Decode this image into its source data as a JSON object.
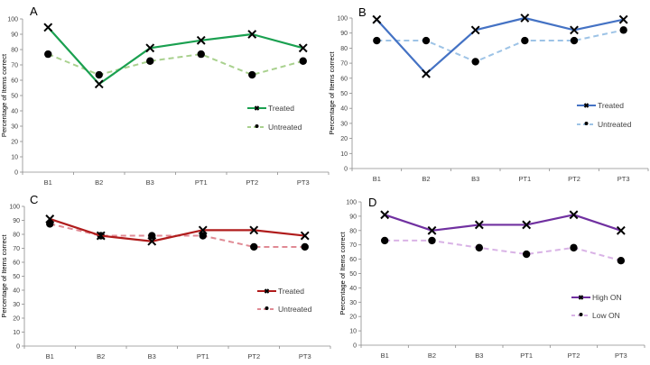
{
  "chart_data": [
    {
      "type": "line",
      "panel_label": "A",
      "title": "",
      "xlabel": "",
      "ylabel": "Percentage of Items correct",
      "categories": [
        "B1",
        "B2",
        "B3",
        "PT1",
        "PT2",
        "PT3"
      ],
      "ylim": [
        0,
        100
      ],
      "yticks": [
        0,
        10,
        20,
        30,
        40,
        50,
        60,
        70,
        80,
        90,
        100
      ],
      "grid": false,
      "legend_position": "center-right",
      "series": [
        {
          "name": "Treated",
          "values": [
            94.5,
            57.5,
            81,
            86,
            90,
            81
          ],
          "color": "#1aa050",
          "style": "solid",
          "marker": "x"
        },
        {
          "name": "Untreated",
          "values": [
            77,
            63.5,
            72.5,
            77,
            63.5,
            72.5
          ],
          "color": "#a9d18e",
          "style": "dashed",
          "marker": "circle"
        }
      ]
    },
    {
      "type": "line",
      "panel_label": "B",
      "title": "",
      "xlabel": "",
      "ylabel": "Percentage of Items correct",
      "categories": [
        "B1",
        "B2",
        "B3",
        "PT1",
        "PT2",
        "PT3"
      ],
      "ylim": [
        0,
        100
      ],
      "yticks": [
        0,
        10,
        20,
        30,
        40,
        50,
        60,
        70,
        80,
        90,
        100
      ],
      "grid": false,
      "legend_position": "center-right",
      "series": [
        {
          "name": "Treated",
          "values": [
            99,
            63,
            92,
            100,
            92,
            99
          ],
          "color": "#4472c4",
          "style": "solid",
          "marker": "x"
        },
        {
          "name": "Untreated",
          "values": [
            85,
            85,
            71,
            85,
            85,
            92
          ],
          "color": "#9dc3e6",
          "style": "dashed",
          "marker": "circle"
        }
      ]
    },
    {
      "type": "line",
      "panel_label": "C",
      "title": "",
      "xlabel": "",
      "ylabel": "Percentage of Items correct",
      "categories": [
        "B1",
        "B2",
        "B3",
        "PT1",
        "PT2",
        "PT3"
      ],
      "ylim": [
        0,
        100
      ],
      "yticks": [
        0,
        10,
        20,
        30,
        40,
        50,
        60,
        70,
        80,
        90,
        100
      ],
      "grid": false,
      "legend_position": "center-right",
      "series": [
        {
          "name": "Treated",
          "values": [
            91,
            79,
            75,
            83,
            83,
            79
          ],
          "color": "#b01c1c",
          "style": "solid",
          "marker": "x"
        },
        {
          "name": "Untreated",
          "values": [
            87.5,
            79,
            79,
            79,
            71,
            71
          ],
          "color": "#e08a94",
          "style": "dashed",
          "marker": "circle"
        }
      ]
    },
    {
      "type": "line",
      "panel_label": "D",
      "title": "",
      "xlabel": "",
      "ylabel": "Percentage of Items correct",
      "categories": [
        "B1",
        "B2",
        "B3",
        "PT1",
        "PT2",
        "PT3"
      ],
      "ylim": [
        0,
        100
      ],
      "yticks": [
        0,
        10,
        20,
        30,
        40,
        50,
        60,
        70,
        80,
        90,
        100
      ],
      "grid": false,
      "legend_position": "bottom-right",
      "series": [
        {
          "name": "High ON",
          "values": [
            91,
            80,
            84,
            84,
            91,
            80
          ],
          "color": "#7030a0",
          "style": "solid",
          "marker": "x"
        },
        {
          "name": "Low ON",
          "values": [
            73,
            73,
            68,
            63.5,
            68,
            59
          ],
          "color": "#d9b3e6",
          "style": "dashed",
          "marker": "circle"
        }
      ]
    }
  ]
}
